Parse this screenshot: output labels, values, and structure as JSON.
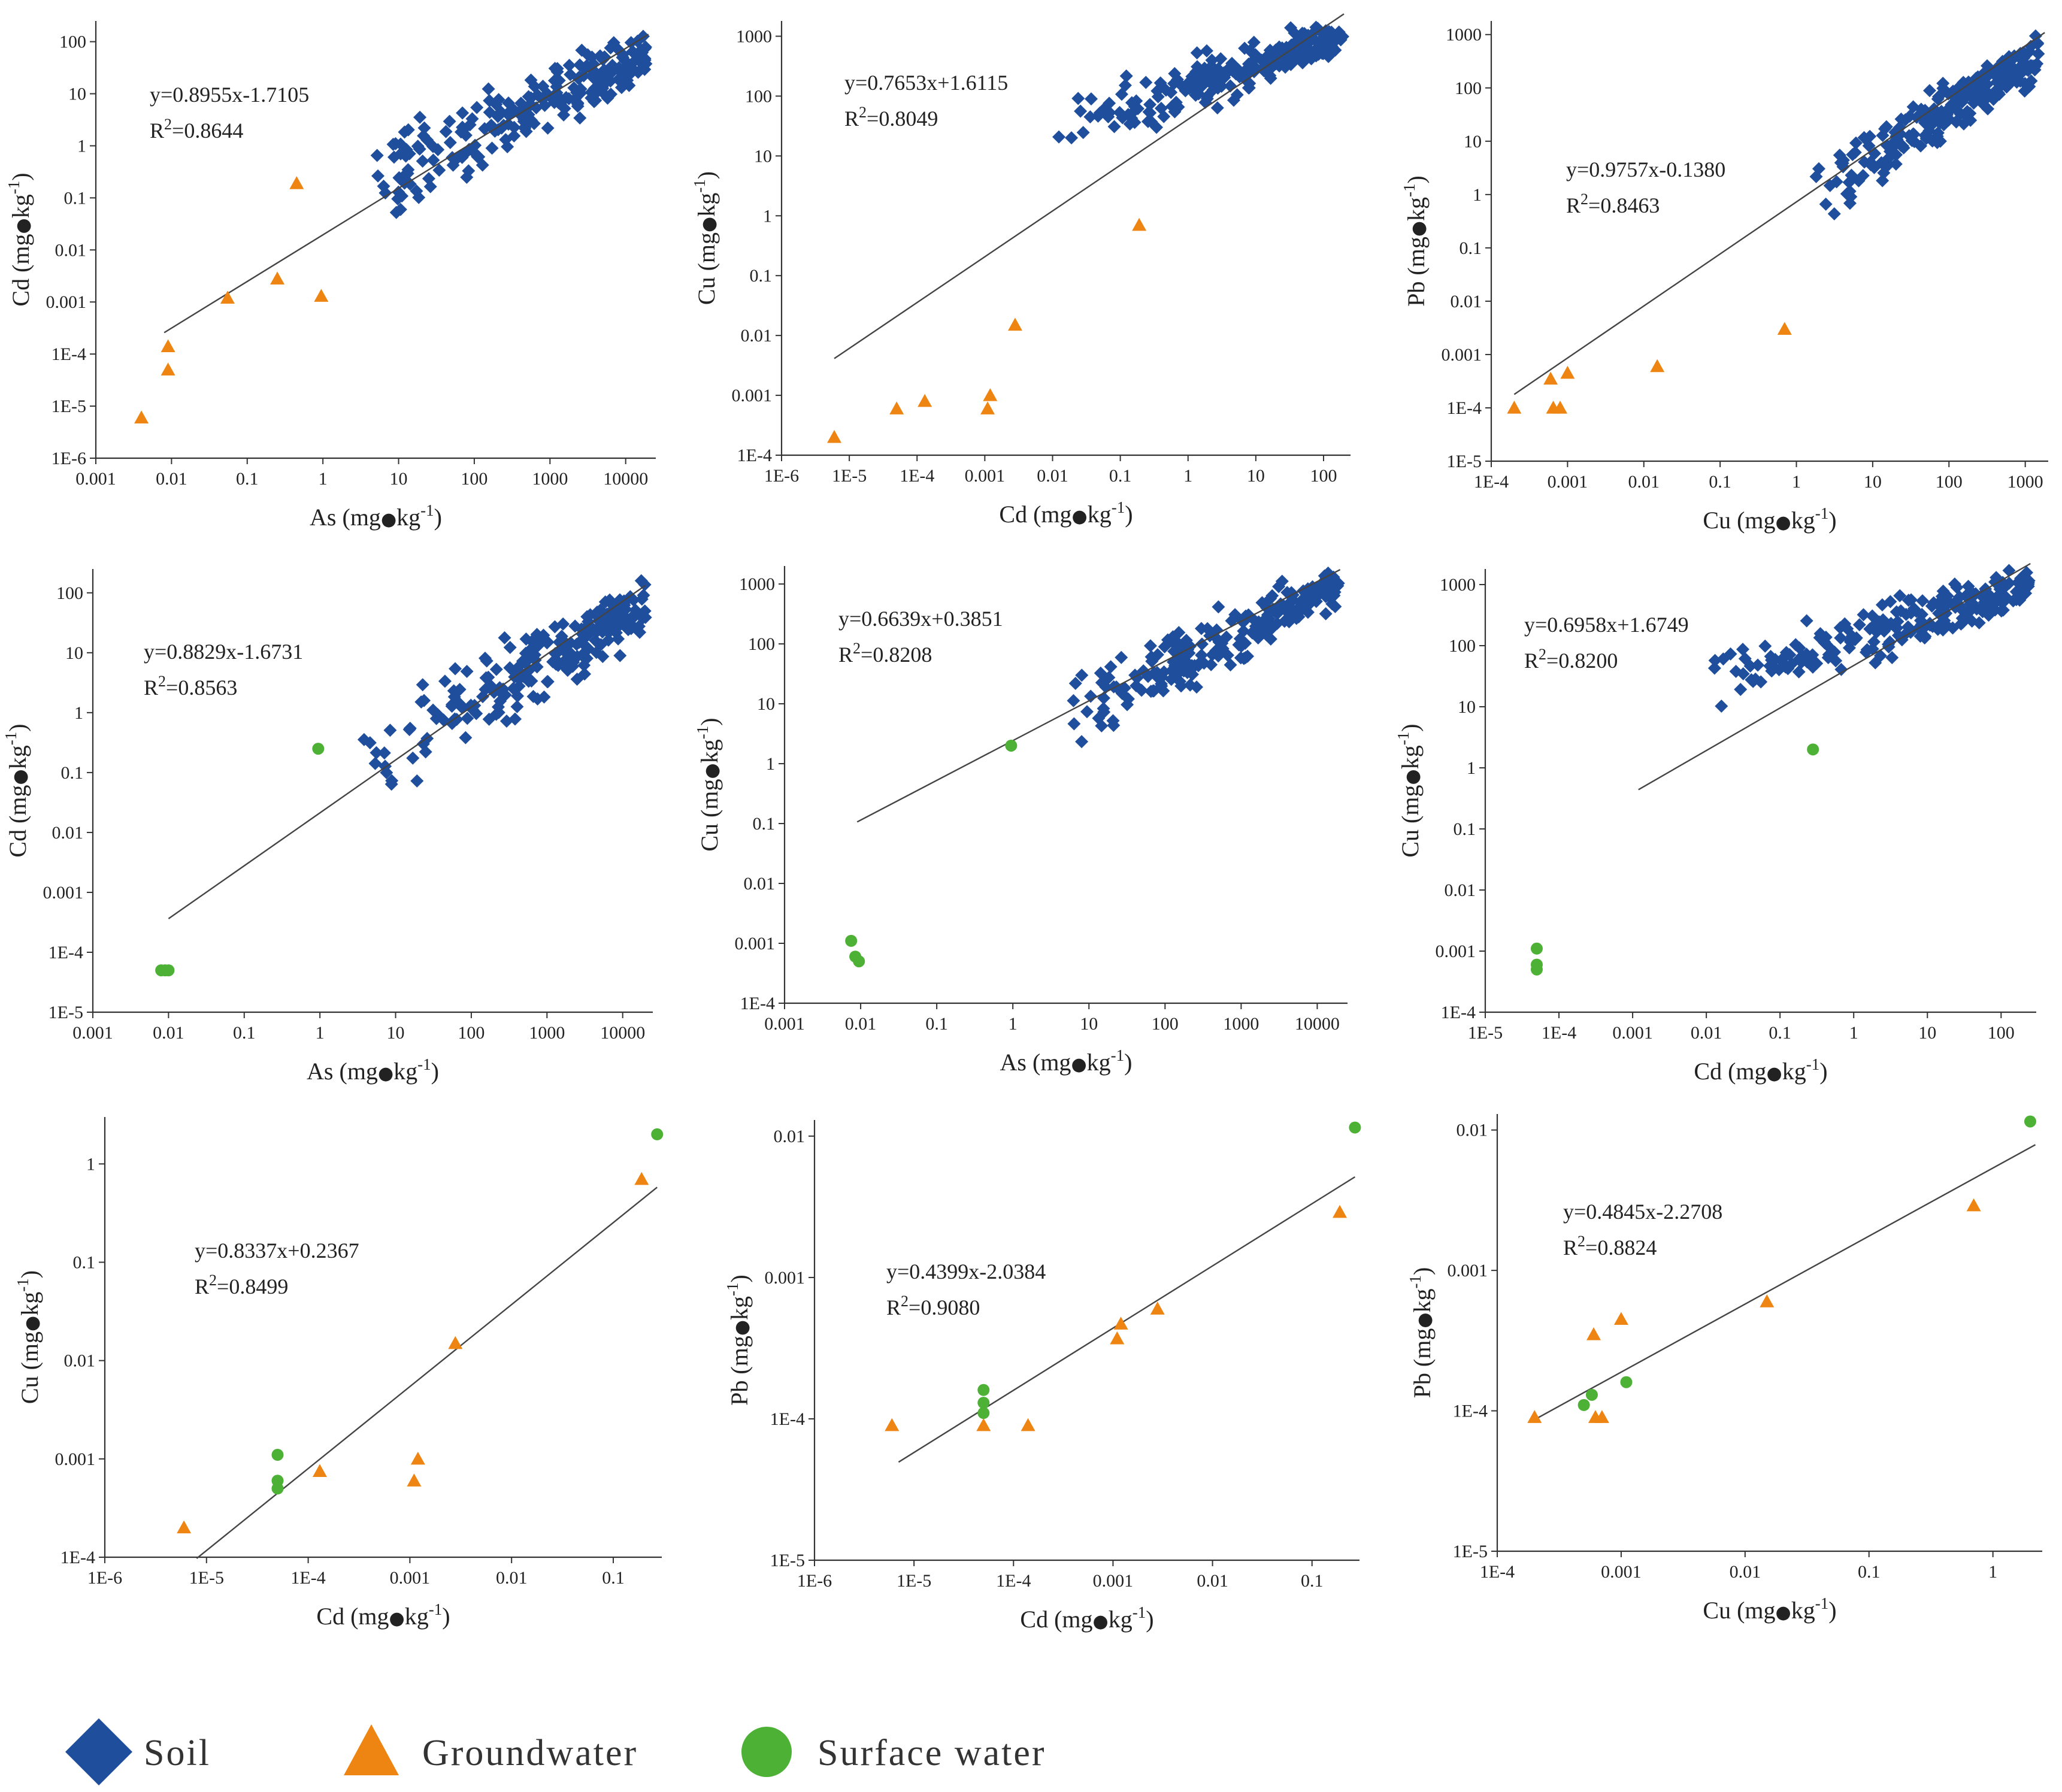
{
  "colors": {
    "soil": "#1f4e9c",
    "groundwater": "#ee8411",
    "surface_water": "#4cb135",
    "axis": "#333333",
    "fit_line": "#444444"
  },
  "legend": [
    {
      "name": "Soil",
      "marker": "diamond",
      "color": "#1f4e9c"
    },
    {
      "name": "Groundwater",
      "marker": "triangle",
      "color": "#ee8411"
    },
    {
      "name": "Surface water",
      "marker": "circle",
      "color": "#4cb135"
    }
  ],
  "chart_data": [
    {
      "type": "scatter",
      "scale": "log",
      "xlabel": "As (mg•kg⁻¹)",
      "ylabel": "Cd (mg•kg⁻¹)",
      "xlim": [
        0.001,
        25000
      ],
      "ylim": [
        1e-06,
        250
      ],
      "xticks": [
        "0.001",
        "0.01",
        "0.1",
        "1",
        "10",
        "100",
        "1000",
        "10000"
      ],
      "yticks": [
        "1E-6",
        "1E-5",
        "1E-4",
        "0.001",
        "0.01",
        "0.1",
        "1",
        "10",
        "100"
      ],
      "equation": "y=0.8955x-1.7105",
      "r2_label": "R",
      "r2_value": "=0.8644",
      "fit": {
        "slope": 0.8955,
        "intercept": -1.7105,
        "x_range": [
          0.008,
          20000
        ]
      },
      "soil_cloud": {
        "x_range": [
          3,
          20000
        ],
        "y_at_x_min": 0.15,
        "y_at_x_max": 60,
        "spread": 0.55,
        "count": 230
      },
      "groundwater": [
        [
          0.004,
          6e-06
        ],
        [
          0.009,
          5e-05
        ],
        [
          0.009,
          0.00014
        ],
        [
          0.055,
          0.0012
        ],
        [
          0.25,
          0.0028
        ],
        [
          0.45,
          0.19
        ],
        [
          0.95,
          0.0013
        ]
      ],
      "surface_water": []
    },
    {
      "type": "scatter",
      "scale": "log",
      "xlabel": "Cd (mg•kg⁻¹)",
      "ylabel": "Cu (mg•kg⁻¹)",
      "xlim": [
        1e-06,
        250
      ],
      "ylim": [
        0.0001,
        1800
      ],
      "xticks": [
        "1E-6",
        "1E-5",
        "1E-4",
        "0.001",
        "0.01",
        "0.1",
        "1",
        "10",
        "100"
      ],
      "yticks": [
        "1E-4",
        "0.001",
        "0.01",
        "0.1",
        "1",
        "10",
        "100",
        "1000"
      ],
      "equation": "y=0.7653x+1.6115",
      "r2_label": "R",
      "r2_value": "=0.8049",
      "fit": {
        "slope": 0.7653,
        "intercept": 1.6115,
        "x_range": [
          6e-06,
          200
        ]
      },
      "soil_cloud": {
        "x_range": [
          0.01,
          200
        ],
        "y_at_x_min": 25,
        "y_at_x_max": 1000,
        "spread": 0.4,
        "count": 230
      },
      "groundwater": [
        [
          6e-06,
          0.0002
        ],
        [
          5e-05,
          0.0006
        ],
        [
          0.00013,
          0.0008
        ],
        [
          0.0011,
          0.0006
        ],
        [
          0.0012,
          0.001
        ],
        [
          0.0028,
          0.015
        ],
        [
          0.19,
          0.7
        ]
      ],
      "surface_water": []
    },
    {
      "type": "scatter",
      "scale": "log",
      "xlabel": "Cu (mg•kg⁻¹)",
      "ylabel": "Pb (mg•kg⁻¹)",
      "xlim": [
        0.0001,
        2000
      ],
      "ylim": [
        1e-05,
        1800
      ],
      "xticks": [
        "1E-4",
        "0.001",
        "0.01",
        "0.1",
        "1",
        "10",
        "100",
        "1000"
      ],
      "yticks": [
        "1E-5",
        "1E-4",
        "0.001",
        "0.01",
        "0.1",
        "1",
        "10",
        "100",
        "1000"
      ],
      "equation": "y=0.9757x-0.1380",
      "r2_label": "R",
      "r2_value": "=0.8463",
      "fit": {
        "slope": 0.9757,
        "intercept": -0.138,
        "x_range": [
          0.0002,
          1800
        ]
      },
      "soil_cloud": {
        "x_range": [
          1.5,
          1500
        ],
        "y_at_x_min": 1,
        "y_at_x_max": 400,
        "spread": 0.5,
        "count": 230
      },
      "groundwater": [
        [
          0.0002,
          0.0001
        ],
        [
          0.0006,
          0.00035
        ],
        [
          0.00065,
          0.0001
        ],
        [
          0.0008,
          0.0001
        ],
        [
          0.001,
          0.00045
        ],
        [
          0.015,
          0.0006
        ],
        [
          0.7,
          0.003
        ]
      ],
      "surface_water": []
    },
    {
      "type": "scatter",
      "scale": "log",
      "xlabel": "As (mg•kg⁻¹)",
      "ylabel": "Cd (mg•kg⁻¹)",
      "xlim": [
        0.001,
        25000
      ],
      "ylim": [
        1e-05,
        250
      ],
      "xticks": [
        "0.001",
        "0.01",
        "0.1",
        "1",
        "10",
        "100",
        "1000",
        "10000"
      ],
      "yticks": [
        "1E-5",
        "1E-4",
        "0.001",
        "0.01",
        "0.1",
        "1",
        "10",
        "100"
      ],
      "equation": "y=0.8829x-1.6731",
      "r2_label": "R",
      "r2_value": "=0.8563",
      "fit": {
        "slope": 0.8829,
        "intercept": -1.6731,
        "x_range": [
          0.01,
          20000
        ]
      },
      "soil_cloud": {
        "x_range": [
          3,
          20000
        ],
        "y_at_x_min": 0.15,
        "y_at_x_max": 60,
        "spread": 0.55,
        "count": 230
      },
      "groundwater": [],
      "surface_water": [
        [
          0.008,
          5e-05
        ],
        [
          0.009,
          5e-05
        ],
        [
          0.01,
          5e-05
        ],
        [
          0.95,
          0.25
        ]
      ]
    },
    {
      "type": "scatter",
      "scale": "log",
      "xlabel": "As (mg•kg⁻¹)",
      "ylabel": "Cu (mg•kg⁻¹)",
      "xlim": [
        0.001,
        25000
      ],
      "ylim": [
        0.0001,
        2000
      ],
      "xticks": [
        "0.001",
        "0.01",
        "0.1",
        "1",
        "10",
        "100",
        "1000",
        "10000"
      ],
      "yticks": [
        "1E-4",
        "0.001",
        "0.01",
        "0.1",
        "1",
        "10",
        "100",
        "1000"
      ],
      "equation": "y=0.6639x+0.3851",
      "r2_label": "R",
      "r2_value": "=0.8208",
      "fit": {
        "slope": 0.6639,
        "intercept": 0.3851,
        "x_range": [
          0.009,
          20000
        ]
      },
      "soil_cloud": {
        "x_range": [
          3,
          20000
        ],
        "y_at_x_min": 5,
        "y_at_x_max": 1000,
        "spread": 0.45,
        "count": 230
      },
      "groundwater": [],
      "surface_water": [
        [
          0.0075,
          0.0011
        ],
        [
          0.0085,
          0.0006
        ],
        [
          0.0095,
          0.0005
        ],
        [
          0.95,
          2
        ]
      ]
    },
    {
      "type": "scatter",
      "scale": "log",
      "xlabel": "Cd (mg•kg⁻¹)",
      "ylabel": "Cu (mg•kg⁻¹)",
      "xlim": [
        1e-05,
        300
      ],
      "ylim": [
        0.0001,
        1800
      ],
      "xticks": [
        "1E-5",
        "1E-4",
        "0.001",
        "0.01",
        "0.1",
        "1",
        "10",
        "100"
      ],
      "yticks": [
        "1E-4",
        "0.001",
        "0.01",
        "0.1",
        "1",
        "10",
        "100",
        "1000"
      ],
      "equation": "y=0.6958x+1.6749",
      "r2_label": "R",
      "r2_value": "=0.8200",
      "fit": {
        "slope": 0.6958,
        "intercept": 1.6749,
        "x_range": [
          0.0012,
          250
        ]
      },
      "soil_cloud": {
        "x_range": [
          0.01,
          250
        ],
        "y_at_x_min": 25,
        "y_at_x_max": 1000,
        "spread": 0.4,
        "count": 230
      },
      "groundwater": [],
      "surface_water": [
        [
          5e-05,
          0.0011
        ],
        [
          5e-05,
          0.0006
        ],
        [
          5e-05,
          0.0005
        ],
        [
          0.28,
          2
        ]
      ]
    },
    {
      "type": "scatter",
      "scale": "log",
      "xlabel": "Cd (mg•kg⁻¹)",
      "ylabel": "Cu (mg•kg⁻¹)",
      "xlim": [
        1e-06,
        0.3
      ],
      "ylim": [
        0.0001,
        3
      ],
      "xticks": [
        "1E-6",
        "1E-5",
        "1E-4",
        "0.001",
        "0.01",
        "0.1"
      ],
      "yticks": [
        "1E-4",
        "0.001",
        "0.01",
        "0.1",
        "1"
      ],
      "equation": "y=0.8337x+0.2367",
      "r2_label": "R",
      "r2_value": "=0.8499",
      "fit": {
        "slope": 0.8337,
        "intercept": 0.2367,
        "x_range": [
          8e-06,
          0.27
        ]
      },
      "soil_cloud": null,
      "groundwater": [
        [
          6e-06,
          0.0002
        ],
        [
          0.00013,
          0.00075
        ],
        [
          0.0011,
          0.0006
        ],
        [
          0.0012,
          0.001
        ],
        [
          0.0028,
          0.015
        ],
        [
          0.19,
          0.7
        ]
      ],
      "surface_water": [
        [
          5e-05,
          0.0011
        ],
        [
          5e-05,
          0.0006
        ],
        [
          5e-05,
          0.0005
        ],
        [
          0.27,
          2
        ]
      ]
    },
    {
      "type": "scatter",
      "scale": "log",
      "xlabel": "Cd (mg•kg⁻¹)",
      "ylabel": "Pb (mg•kg⁻¹)",
      "xlim": [
        1e-06,
        0.3
      ],
      "ylim": [
        1e-05,
        0.013
      ],
      "xticks": [
        "1E-6",
        "1E-5",
        "1E-4",
        "0.001",
        "0.01",
        "0.1"
      ],
      "yticks": [
        "1E-5",
        "1E-4",
        "0.001",
        "0.01"
      ],
      "equation": "y=0.4399x-2.0384",
      "r2_label": "R",
      "r2_value": "=0.9080",
      "fit": {
        "slope": 0.4399,
        "intercept": -2.0384,
        "x_range": [
          7e-06,
          0.27
        ]
      },
      "soil_cloud": null,
      "groundwater": [
        [
          6e-06,
          9e-05
        ],
        [
          5e-05,
          9e-05
        ],
        [
          0.00014,
          9e-05
        ],
        [
          0.0011,
          0.00037
        ],
        [
          0.0012,
          0.00047
        ],
        [
          0.0028,
          0.0006
        ],
        [
          0.19,
          0.0029
        ]
      ],
      "surface_water": [
        [
          5e-05,
          0.00016
        ],
        [
          5e-05,
          0.00013
        ],
        [
          5e-05,
          0.00011
        ],
        [
          0.27,
          0.0115
        ]
      ]
    },
    {
      "type": "scatter",
      "scale": "log",
      "xlabel": "Cu (mg•kg⁻¹)",
      "ylabel": "Pb (mg•kg⁻¹)",
      "xlim": [
        0.0001,
        2.5
      ],
      "ylim": [
        1e-05,
        0.013
      ],
      "xticks": [
        "1E-4",
        "0.001",
        "0.01",
        "0.1",
        "1"
      ],
      "yticks": [
        "1E-5",
        "1E-4",
        "0.001",
        "0.01"
      ],
      "equation": "y=0.4845x-2.2708",
      "r2_label": "R",
      "r2_value": "=0.8824",
      "fit": {
        "slope": 0.4845,
        "intercept": -2.2708,
        "x_range": [
          0.0002,
          2.2
        ]
      },
      "soil_cloud": null,
      "groundwater": [
        [
          0.0002,
          9e-05
        ],
        [
          0.0006,
          0.00035
        ],
        [
          0.00062,
          9e-05
        ],
        [
          0.0007,
          9e-05
        ],
        [
          0.001,
          0.00045
        ],
        [
          0.015,
          0.0006
        ],
        [
          0.7,
          0.0029
        ]
      ],
      "surface_water": [
        [
          0.0005,
          0.00011
        ],
        [
          0.00058,
          0.00013
        ],
        [
          0.0011,
          0.00016
        ],
        [
          2,
          0.0115
        ]
      ]
    }
  ]
}
